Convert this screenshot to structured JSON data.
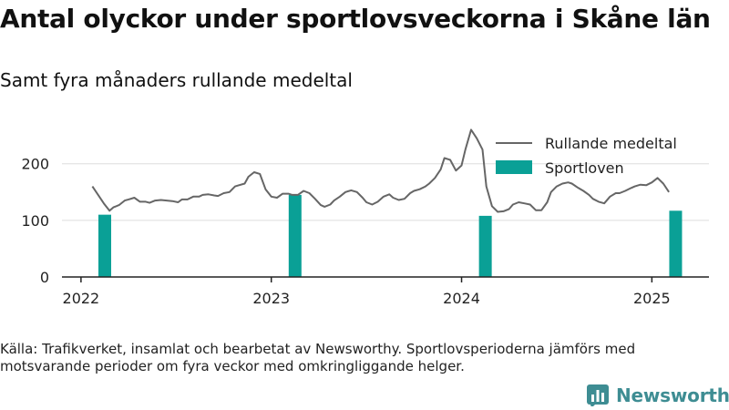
{
  "title": "Antal olyckor under sportlovsveckorna i Skåne län",
  "subtitle": "Samt fyra månaders rullande medeltal",
  "source": "Källa: Trafikverket, insamlat och bearbetat av Newsworthy. Sportlovsperioderna jämförs med motsvarande perioder om fyra veckor med omkringliggande helger.",
  "brand": {
    "name": "Newsworthy",
    "icon": "bar-chart-logo-icon",
    "color": "#3e8d93"
  },
  "chart_data": {
    "type": "bar+line",
    "x_axis": {
      "type": "time",
      "min": 2021.9,
      "max": 2025.3,
      "ticks": [
        2022,
        2023,
        2024,
        2025
      ],
      "tick_labels": [
        "2022",
        "2023",
        "2024",
        "2025"
      ]
    },
    "y_axis": {
      "min": 0,
      "max": 280,
      "ticks": [
        0,
        100,
        200
      ],
      "tick_labels": [
        "0",
        "100",
        "200"
      ]
    },
    "grid": {
      "horizontal": true,
      "vertical": false
    },
    "legend": {
      "placement": "top-right",
      "items": [
        {
          "label": "Rullande medeltal",
          "kind": "line",
          "color": "#666666"
        },
        {
          "label": "Sportloven",
          "kind": "bar",
          "color": "#0aa096"
        }
      ]
    },
    "bars": {
      "name": "Sportloven",
      "color": "#0aa096",
      "points": [
        {
          "x": 2022.125,
          "value": 110
        },
        {
          "x": 2023.125,
          "value": 145
        },
        {
          "x": 2024.125,
          "value": 108
        },
        {
          "x": 2025.125,
          "value": 117
        }
      ]
    },
    "line": {
      "name": "Rullande medeltal",
      "color": "#666666",
      "x": [
        2022.06,
        2022.09,
        2022.12,
        2022.15,
        2022.17,
        2022.2,
        2022.23,
        2022.25,
        2022.28,
        2022.31,
        2022.34,
        2022.36,
        2022.39,
        2022.42,
        2022.45,
        2022.48,
        2022.51,
        2022.53,
        2022.56,
        2022.59,
        2022.62,
        2022.64,
        2022.67,
        2022.7,
        2022.72,
        2022.75,
        2022.78,
        2022.81,
        2022.83,
        2022.86,
        2022.88,
        2022.91,
        2022.94,
        2022.97,
        2023.0,
        2023.03,
        2023.06,
        2023.09,
        2023.11,
        2023.14,
        2023.17,
        2023.2,
        2023.23,
        2023.26,
        2023.28,
        2023.31,
        2023.33,
        2023.36,
        2023.39,
        2023.42,
        2023.45,
        2023.48,
        2023.5,
        2023.53,
        2023.56,
        2023.59,
        2023.62,
        2023.64,
        2023.67,
        2023.7,
        2023.73,
        2023.75,
        2023.78,
        2023.81,
        2023.83,
        2023.86,
        2023.89,
        2023.91,
        2023.94,
        2023.97,
        2024.0,
        2024.02,
        2024.05,
        2024.08,
        2024.11,
        2024.13,
        2024.16,
        2024.19,
        2024.22,
        2024.25,
        2024.27,
        2024.3,
        2024.33,
        2024.36,
        2024.39,
        2024.42,
        2024.45,
        2024.47,
        2024.5,
        2024.53,
        2024.56,
        2024.58,
        2024.61,
        2024.64,
        2024.67,
        2024.69,
        2024.72,
        2024.75,
        2024.78,
        2024.81,
        2024.83,
        2024.86,
        2024.89,
        2024.91,
        2024.94,
        2024.97,
        2025.0,
        2025.03,
        2025.06,
        2025.09
      ],
      "values": [
        160,
        145,
        130,
        117,
        123,
        127,
        135,
        137,
        140,
        133,
        133,
        131,
        135,
        136,
        135,
        134,
        132,
        137,
        137,
        142,
        142,
        145,
        146,
        144,
        143,
        148,
        150,
        160,
        162,
        165,
        177,
        185,
        182,
        155,
        142,
        140,
        147,
        147,
        145,
        145,
        152,
        148,
        138,
        127,
        124,
        128,
        135,
        142,
        150,
        153,
        150,
        140,
        132,
        128,
        133,
        142,
        146,
        140,
        136,
        138,
        148,
        152,
        155,
        160,
        165,
        175,
        190,
        210,
        207,
        188,
        197,
        225,
        260,
        245,
        225,
        160,
        125,
        115,
        116,
        120,
        128,
        132,
        130,
        128,
        118,
        118,
        132,
        150,
        160,
        165,
        167,
        165,
        158,
        152,
        145,
        138,
        133,
        130,
        142,
        148,
        148,
        152,
        157,
        160,
        163,
        162,
        167,
        175,
        165,
        150
      ]
    }
  }
}
